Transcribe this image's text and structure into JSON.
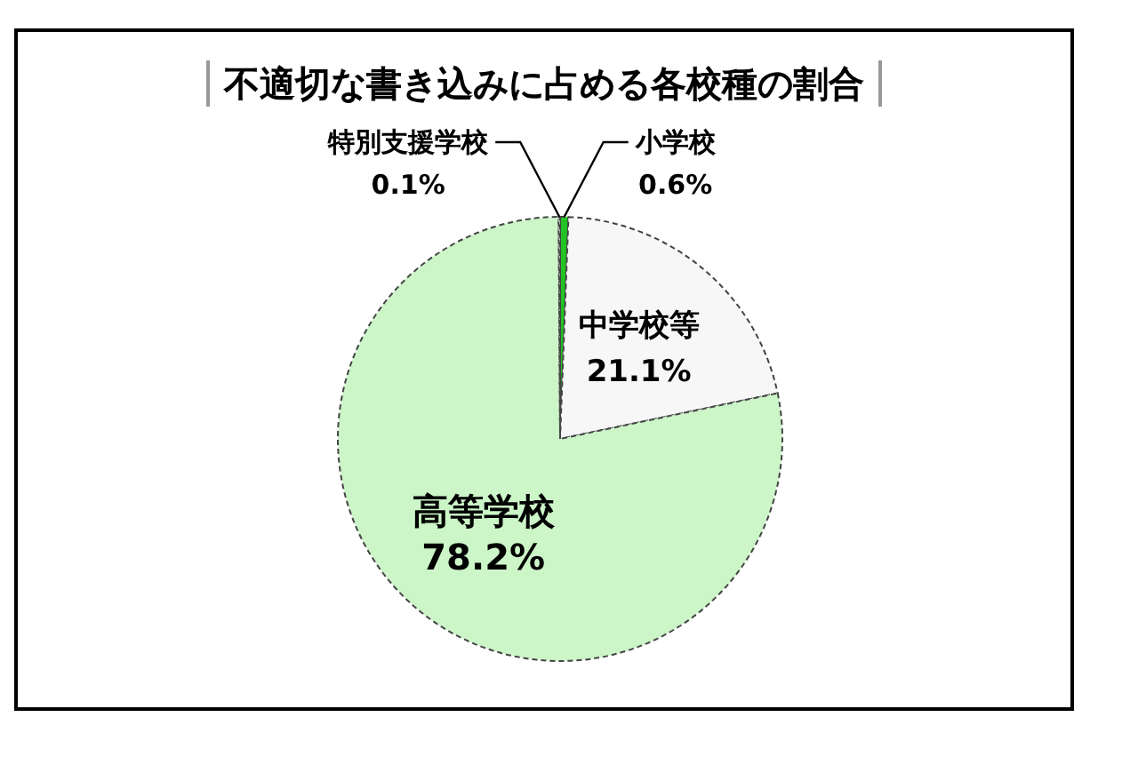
{
  "chart_data": {
    "type": "pie",
    "title": "不適切な書き込みに占める各校種の割合",
    "categories": [
      "小学校",
      "中学校等",
      "高等学校",
      "特別支援学校"
    ],
    "values": [
      0.6,
      21.1,
      78.2,
      0.1
    ],
    "colors": [
      "#22c322",
      "#f7f7f7",
      "#ccf5c8",
      "#ffffff"
    ],
    "value_labels": [
      "0.6%",
      "21.1%",
      "78.2%",
      "0.1%"
    ]
  }
}
